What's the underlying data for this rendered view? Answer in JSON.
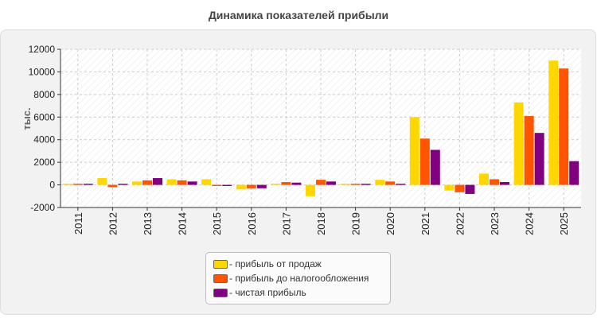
{
  "chart_data": {
    "type": "bar",
    "title": "Динамика показателей прибыли",
    "ylabel": "тыс.",
    "xlabel": "",
    "ylim": [
      -2000,
      12000
    ],
    "yticks": [
      -2000,
      0,
      2000,
      4000,
      6000,
      8000,
      10000,
      12000
    ],
    "grid": true,
    "legend_position": "bottom-center",
    "categories": [
      "2011",
      "2012",
      "2013",
      "2014",
      "2015",
      "2016",
      "2017",
      "2018",
      "2019",
      "2020",
      "2021",
      "2022",
      "2023",
      "2024",
      "2025"
    ],
    "series": [
      {
        "name": "- прибыль от продаж",
        "color": "#ffd700",
        "values": [
          100,
          600,
          300,
          500,
          500,
          -400,
          100,
          -1000,
          100,
          450,
          6000,
          -500,
          1000,
          7300,
          11000
        ]
      },
      {
        "name": "- прибыль до налогообложения",
        "color": "#ff5500",
        "values": [
          100,
          -200,
          400,
          400,
          -100,
          -300,
          250,
          450,
          100,
          300,
          4100,
          -650,
          500,
          6100,
          10300
        ]
      },
      {
        "name": "- чистая прибыль",
        "color": "#800080",
        "values": [
          100,
          100,
          600,
          300,
          -100,
          -300,
          200,
          300,
          100,
          100,
          3100,
          -800,
          250,
          4600,
          2100
        ]
      }
    ]
  }
}
